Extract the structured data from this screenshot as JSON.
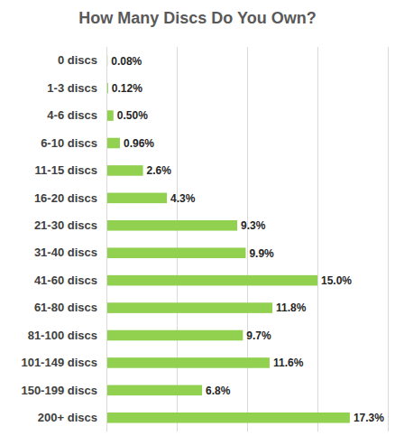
{
  "chart_data": {
    "type": "bar",
    "orientation": "horizontal",
    "title": "How Many Discs Do You Own?",
    "categories": [
      "0 discs",
      "1-3 discs",
      "4-6 discs",
      "6-10 discs",
      "11-15 discs",
      "16-20 discs",
      "21-30 discs",
      "31-40 discs",
      "41-60 discs",
      "61-80 discs",
      "81-100 discs",
      "101-149 discs",
      "150-199 discs",
      "200+ discs"
    ],
    "values": [
      0.08,
      0.12,
      0.5,
      0.96,
      2.6,
      4.3,
      9.3,
      9.9,
      15.0,
      11.8,
      9.7,
      11.6,
      6.8,
      17.3
    ],
    "value_labels": [
      "0.08%",
      "0.12%",
      "0.50%",
      "0.96%",
      "2.6%",
      "4.3%",
      "9.3%",
      "9.9%",
      "15.0%",
      "11.8%",
      "9.7%",
      "11.6%",
      "6.8%",
      "17.3%"
    ],
    "color": "#92d050",
    "xlim": [
      0,
      20
    ],
    "xticks": [
      0,
      5,
      10,
      15,
      20
    ],
    "grid": true,
    "data_labels": true,
    "tick_labels": "y"
  }
}
